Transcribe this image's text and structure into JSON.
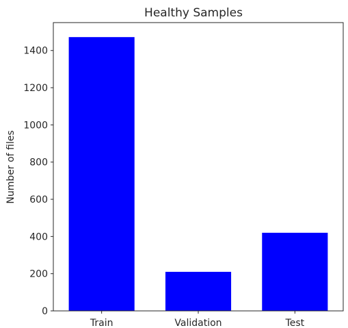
{
  "chart_data": {
    "type": "bar",
    "title": "Healthy Samples",
    "xlabel": "",
    "ylabel": "Number of files",
    "categories": [
      "Train",
      "Validation",
      "Test"
    ],
    "values": [
      1472,
      210,
      420
    ],
    "ylim": [
      0,
      1550
    ],
    "yticks": [
      0,
      200,
      400,
      600,
      800,
      1000,
      1200,
      1400
    ],
    "bar_color": "#0000ff",
    "grid": false,
    "legend": "none"
  }
}
